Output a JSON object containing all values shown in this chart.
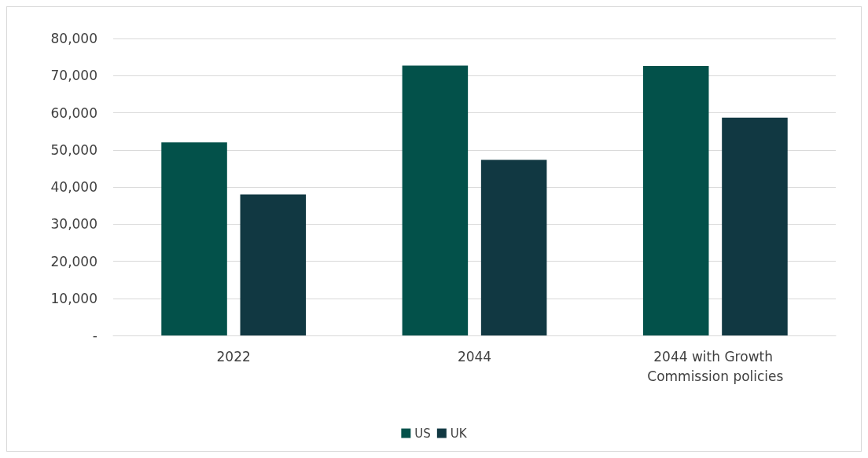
{
  "chart_data": {
    "type": "bar",
    "categories": [
      "2022",
      "2044",
      "2044 with Growth Commission policies"
    ],
    "series": [
      {
        "name": "US",
        "color": "#03514a",
        "values": [
          52000,
          72700,
          72600
        ]
      },
      {
        "name": "UK",
        "color": "#113842",
        "values": [
          38000,
          47300,
          58700
        ]
      }
    ],
    "ylim": [
      0,
      80000
    ],
    "yticks": [
      {
        "value": 0,
        "label": "-"
      },
      {
        "value": 10000,
        "label": "10,000"
      },
      {
        "value": 20000,
        "label": "20,000"
      },
      {
        "value": 30000,
        "label": "30,000"
      },
      {
        "value": 40000,
        "label": "40,000"
      },
      {
        "value": 50000,
        "label": "50,000"
      },
      {
        "value": 60000,
        "label": "60,000"
      },
      {
        "value": 70000,
        "label": "70,000"
      },
      {
        "value": 80000,
        "label": "80,000"
      }
    ],
    "grid": "y",
    "legend": "bottom"
  }
}
